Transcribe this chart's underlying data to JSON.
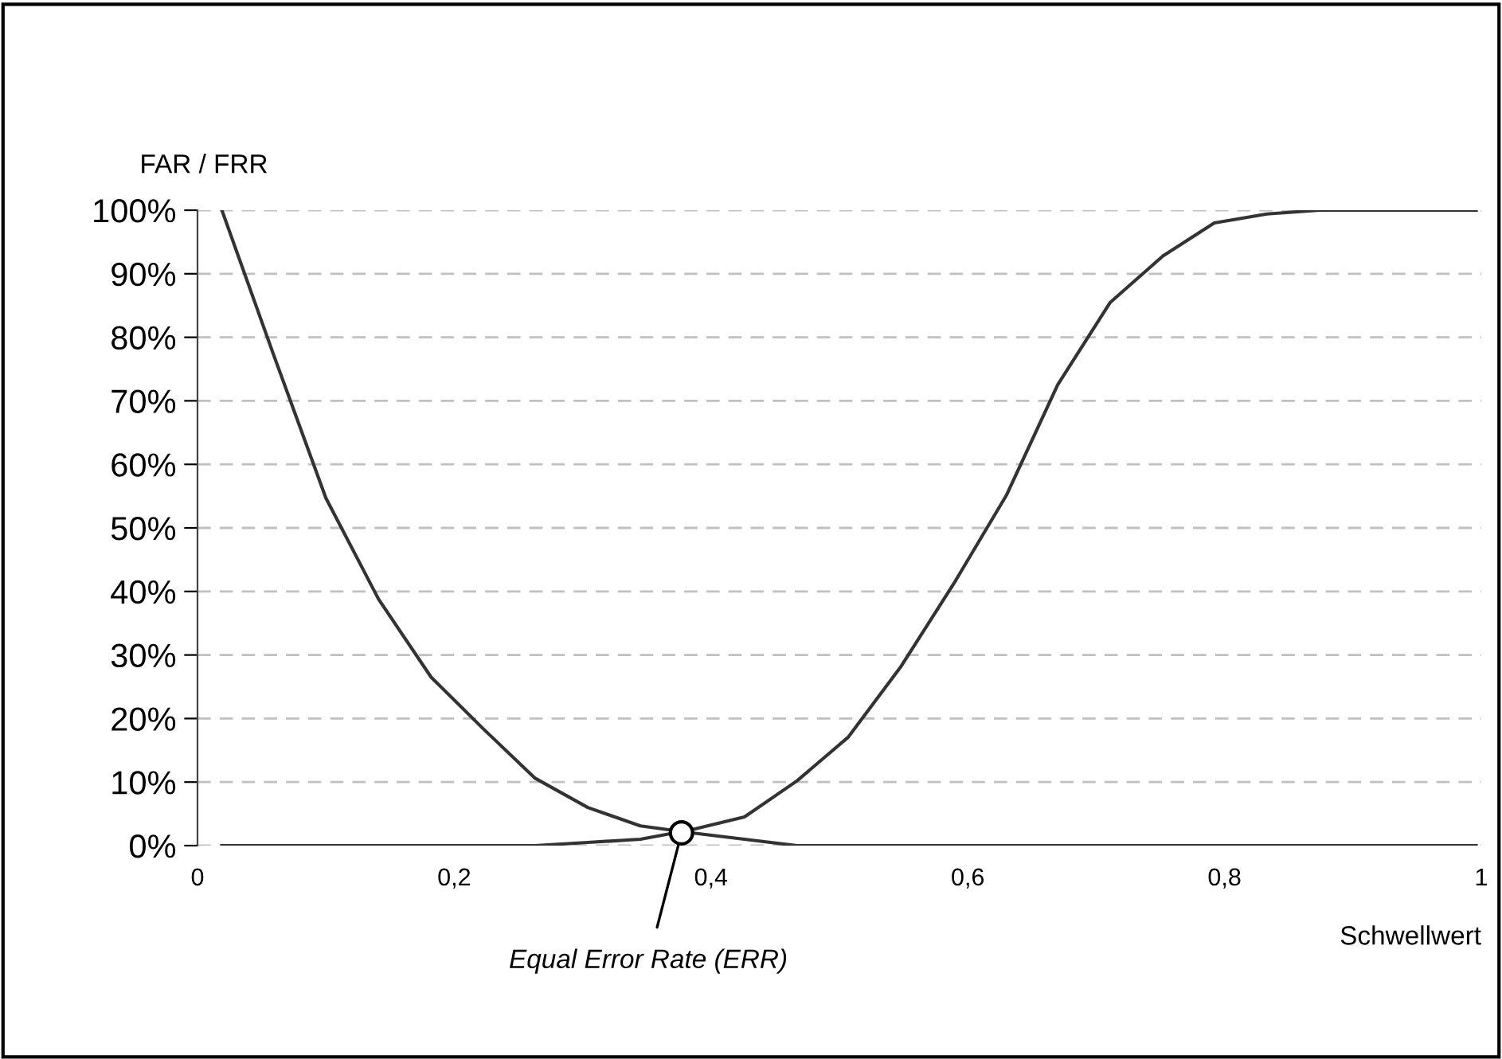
{
  "chart_data": {
    "type": "line",
    "ylabel": "FAR / FRR",
    "xlabel": "Schwellwert",
    "x": [
      0.019,
      0.059,
      0.1,
      0.141,
      0.182,
      0.222,
      0.263,
      0.304,
      0.345,
      0.385,
      0.426,
      0.467,
      0.507,
      0.548,
      0.589,
      0.63,
      0.67,
      0.711,
      0.752,
      0.792,
      0.833,
      0.874,
      0.914,
      0.955,
      0.996
    ],
    "series": [
      {
        "color": "#333333",
        "values": [
          100,
          77.4,
          54.7,
          38.8,
          26.5,
          18.5,
          10.6,
          6.0,
          3.1,
          2.0,
          1.0,
          0,
          0,
          0,
          0,
          0,
          0,
          0,
          0,
          0,
          0,
          0,
          0,
          0,
          0
        ]
      },
      {
        "color": "#333333",
        "values": [
          0,
          0,
          0,
          0,
          0,
          0,
          0,
          0.5,
          1.0,
          2.5,
          4.5,
          10.2,
          17.1,
          28.2,
          41.2,
          55.1,
          72.5,
          85.5,
          92.8,
          98.0,
          99.4,
          100,
          100,
          100,
          100
        ]
      }
    ],
    "xlim": [
      0,
      1
    ],
    "xticks": [
      0,
      {
        "value": 0.2,
        "label": "0,2"
      },
      {
        "value": 0.4,
        "label": "0,4"
      },
      {
        "value": 0.6,
        "label": "0,6"
      },
      {
        "value": 0.8,
        "label": "0,8"
      },
      1
    ],
    "ylim": [
      0,
      100
    ],
    "yticks": [
      {
        "value": 0,
        "label": "0%"
      },
      {
        "value": 10,
        "label": "10%"
      },
      {
        "value": 20,
        "label": "20%"
      },
      {
        "value": 30,
        "label": "30%"
      },
      {
        "value": 40,
        "label": "40%"
      },
      {
        "value": 50,
        "label": "50%"
      },
      {
        "value": 60,
        "label": "60%"
      },
      {
        "value": 70,
        "label": "70%"
      },
      {
        "value": 80,
        "label": "80%"
      },
      {
        "value": 90,
        "label": "90%"
      },
      {
        "value": 100,
        "label": "100%"
      }
    ],
    "grid": "y",
    "marker": "none",
    "line_style": "solid",
    "annotations": [
      {
        "text": "Equal Error Rate (ERR)",
        "x": 0.377,
        "y": 2
      }
    ]
  }
}
